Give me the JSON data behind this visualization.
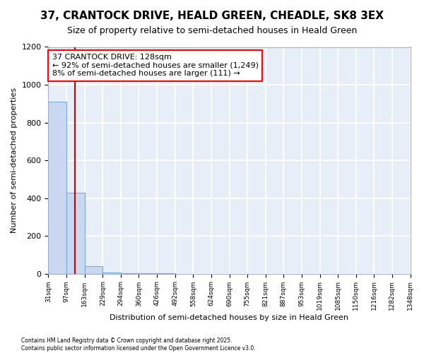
{
  "title": "37, CRANTOCK DRIVE, HEALD GREEN, CHEADLE, SK8 3EX",
  "subtitle": "Size of property relative to semi-detached houses in Heald Green",
  "xlabel": "Distribution of semi-detached houses by size in Heald Green",
  "ylabel": "Number of semi-detached properties",
  "bin_edges": [
    31,
    97,
    163,
    229,
    294,
    360,
    426,
    492,
    558,
    624,
    690,
    755,
    821,
    887,
    953,
    1019,
    1085,
    1150,
    1216,
    1282,
    1348
  ],
  "bar_heights": [
    910,
    430,
    40,
    5,
    2,
    1,
    1,
    0,
    0,
    0,
    0,
    0,
    0,
    0,
    0,
    0,
    0,
    0,
    0,
    0
  ],
  "bar_color": "#c8d8f0",
  "bar_edge_color": "#7aabdb",
  "property_size": 128,
  "vline_color": "#cc0000",
  "annotation_text": "37 CRANTOCK DRIVE: 128sqm\n← 92% of semi-detached houses are smaller (1,249)\n8% of semi-detached houses are larger (111) →",
  "ylim": [
    0,
    1200
  ],
  "yticks": [
    0,
    200,
    400,
    600,
    800,
    1000,
    1200
  ],
  "footer": "Contains HM Land Registry data © Crown copyright and database right 2025.\nContains public sector information licensed under the Open Government Licence v3.0.",
  "background_color": "#ffffff",
  "axes_bg_color": "#e8eef8",
  "grid_color": "#ffffff"
}
